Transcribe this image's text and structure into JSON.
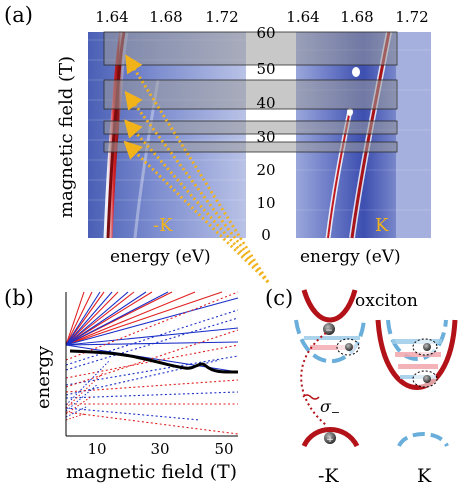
{
  "panel_a": {
    "label": "(a)",
    "energy_ticks_left": [
      "1.64",
      "1.68",
      "1.72"
    ],
    "energy_ticks_right": [
      "1.64",
      "1.68",
      "1.72"
    ],
    "field_ticks": [
      "60",
      "50",
      "40",
      "30",
      "20",
      "10",
      "0"
    ],
    "y_label": "magnetic field (T)",
    "x_label_left": "energy (eV)",
    "x_label_right": "energy (eV)",
    "valley_left": "-K",
    "valley_right": "K",
    "colors": {
      "trace_red": "#b3161b",
      "bg_blue": "#5c6ebf",
      "highlight": "#9a9a9a",
      "arrow": "#f2b21a"
    }
  },
  "panel_b": {
    "label": "(b)",
    "y_label": "energy",
    "x_label": "magnetic field (T)",
    "x_ticks": [
      "10",
      "30",
      "50"
    ],
    "colors": {
      "red": "#e02020",
      "blue": "#1a2fc8",
      "black": "#000000"
    }
  },
  "panel_c": {
    "label": "(c)",
    "title": "oxciton",
    "sigma": "σ",
    "sigma_sub": "−",
    "valley_left": "-K",
    "valley_right": "K",
    "colors": {
      "red": "#b21218",
      "light_blue": "#6aaedb",
      "pink": "#f1a6ad"
    }
  }
}
